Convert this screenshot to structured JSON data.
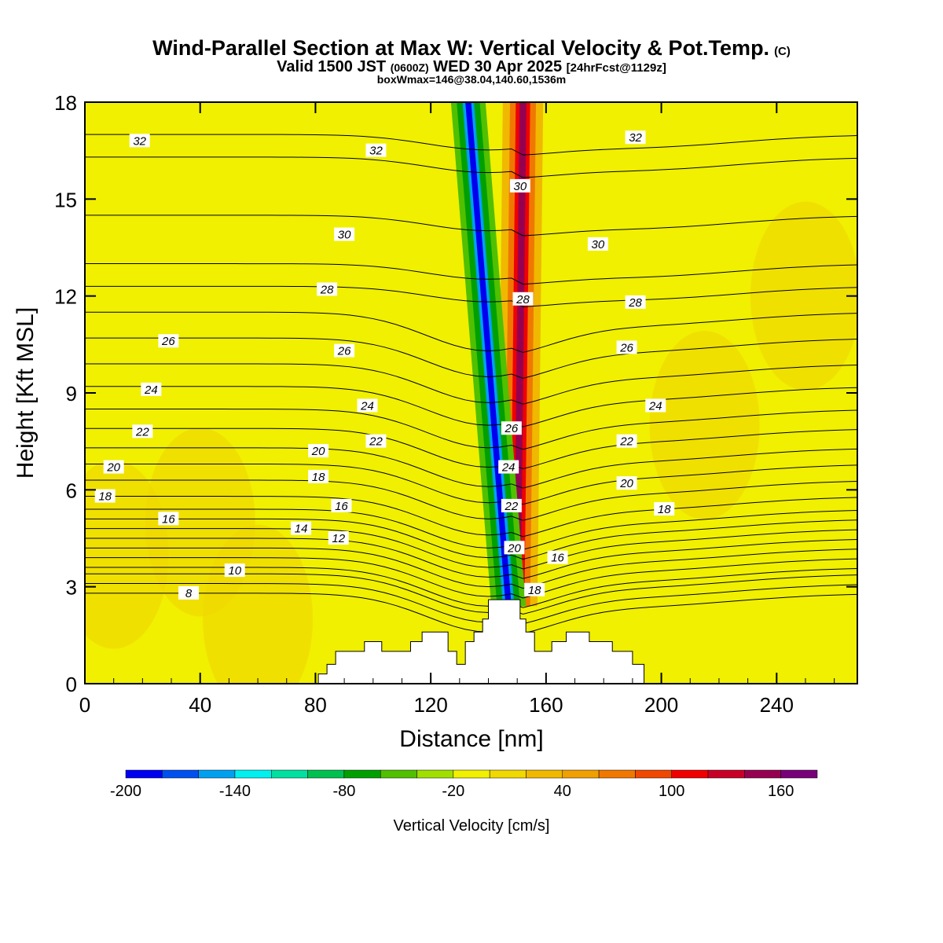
{
  "header": {
    "title": "Wind-Parallel Section at Max W: Vertical Velocity & Pot.Temp.",
    "copyright": "(C)",
    "valid_prefix": "Valid 1500 JST",
    "valid_utc": "(0600Z)",
    "valid_date": "WED 30 Apr 2025",
    "forecast": "[24hrFcst@1129z]",
    "boxinfo": "boxWmax=146@38.04,140.60,1536m"
  },
  "chart_data": {
    "type": "heatmap",
    "xlabel": "Distance [nm]",
    "ylabel": "Height [Kft MSL]",
    "xlim": [
      0,
      268
    ],
    "ylim": [
      0,
      18
    ],
    "xticks": [
      0,
      40,
      80,
      120,
      160,
      200,
      240
    ],
    "yticks": [
      0,
      3,
      6,
      9,
      12,
      15,
      18
    ],
    "colorbar": {
      "label": "Vertical Velocity [cm/s]",
      "range": [
        -200,
        180
      ],
      "tick_values": [
        -200,
        -140,
        -80,
        -20,
        40,
        100,
        160
      ],
      "tick_labels": [
        "-200",
        "-140",
        "-80",
        "-20",
        "40",
        "100",
        "160"
      ],
      "colors": [
        "#0000f0",
        "#0050f0",
        "#00a0f0",
        "#00f0f0",
        "#00e0a0",
        "#00c050",
        "#00a000",
        "#50c000",
        "#a0e000",
        "#f0f000",
        "#f0d800",
        "#f0b800",
        "#f0a000",
        "#f07800",
        "#f04800",
        "#f00000",
        "#c80028",
        "#960050",
        "#780078"
      ]
    },
    "background_color": "#f0f000",
    "updraft": {
      "base_x": 150,
      "top_x": 152,
      "max": 146,
      "colors": [
        "#f0b800",
        "#f07800",
        "#f00000",
        "#960050"
      ]
    },
    "downdraft": {
      "base_x": 147,
      "top_x": 133,
      "min": -200,
      "colors": [
        "#50c000",
        "#00a000",
        "#00a0f0",
        "#0000f0"
      ]
    },
    "terrain": [
      [
        81,
        0
      ],
      [
        81,
        0.3
      ],
      [
        84,
        0.3
      ],
      [
        84,
        0.6
      ],
      [
        87,
        0.6
      ],
      [
        87,
        1.0
      ],
      [
        97,
        1.0
      ],
      [
        97,
        1.3
      ],
      [
        103,
        1.3
      ],
      [
        103,
        1.0
      ],
      [
        113,
        1.0
      ],
      [
        113,
        1.3
      ],
      [
        117,
        1.3
      ],
      [
        117,
        1.6
      ],
      [
        126,
        1.6
      ],
      [
        126,
        1.0
      ],
      [
        129,
        1.0
      ],
      [
        129,
        0.6
      ],
      [
        132,
        0.6
      ],
      [
        132,
        1.3
      ],
      [
        135,
        1.3
      ],
      [
        135,
        1.6
      ],
      [
        138,
        1.6
      ],
      [
        138,
        2.0
      ],
      [
        140,
        2.0
      ],
      [
        140,
        2.6
      ],
      [
        151,
        2.6
      ],
      [
        151,
        2.0
      ],
      [
        153,
        2.0
      ],
      [
        153,
        1.6
      ],
      [
        156,
        1.6
      ],
      [
        156,
        1.0
      ],
      [
        162,
        1.0
      ],
      [
        162,
        1.3
      ],
      [
        167,
        1.3
      ],
      [
        167,
        1.6
      ],
      [
        175,
        1.6
      ],
      [
        175,
        1.3
      ],
      [
        183,
        1.3
      ],
      [
        183,
        1.0
      ],
      [
        190,
        1.0
      ],
      [
        190,
        0.6
      ],
      [
        194,
        0.6
      ],
      [
        194,
        0
      ]
    ],
    "isentrope_labels": [
      {
        "text": "32",
        "x": 19,
        "y": 16.8
      },
      {
        "text": "32",
        "x": 101,
        "y": 16.5
      },
      {
        "text": "32",
        "x": 191,
        "y": 16.9
      },
      {
        "text": "30",
        "x": 90,
        "y": 13.9
      },
      {
        "text": "30",
        "x": 151,
        "y": 15.4
      },
      {
        "text": "30",
        "x": 178,
        "y": 13.6
      },
      {
        "text": "28",
        "x": 84,
        "y": 12.2
      },
      {
        "text": "28",
        "x": 152,
        "y": 11.9
      },
      {
        "text": "28",
        "x": 191,
        "y": 11.8
      },
      {
        "text": "26",
        "x": 29,
        "y": 10.6
      },
      {
        "text": "26",
        "x": 90,
        "y": 10.3
      },
      {
        "text": "26",
        "x": 188,
        "y": 10.4
      },
      {
        "text": "24",
        "x": 23,
        "y": 9.1
      },
      {
        "text": "24",
        "x": 98,
        "y": 8.6
      },
      {
        "text": "24",
        "x": 198,
        "y": 8.6
      },
      {
        "text": "26",
        "x": 148,
        "y": 7.9
      },
      {
        "text": "24",
        "x": 147,
        "y": 6.7
      },
      {
        "text": "22",
        "x": 148,
        "y": 5.5
      },
      {
        "text": "20",
        "x": 149,
        "y": 4.2
      },
      {
        "text": "18",
        "x": 156,
        "y": 2.9
      },
      {
        "text": "22",
        "x": 20,
        "y": 7.8
      },
      {
        "text": "22",
        "x": 101,
        "y": 7.5
      },
      {
        "text": "22",
        "x": 188,
        "y": 7.5
      },
      {
        "text": "20",
        "x": 10,
        "y": 6.7
      },
      {
        "text": "20",
        "x": 81,
        "y": 7.2
      },
      {
        "text": "20",
        "x": 188,
        "y": 6.2
      },
      {
        "text": "18",
        "x": 7,
        "y": 5.8
      },
      {
        "text": "18",
        "x": 81,
        "y": 6.4
      },
      {
        "text": "18",
        "x": 201,
        "y": 5.4
      },
      {
        "text": "16",
        "x": 29,
        "y": 5.1
      },
      {
        "text": "16",
        "x": 89,
        "y": 5.5
      },
      {
        "text": "16",
        "x": 164,
        "y": 3.9
      },
      {
        "text": "14",
        "x": 75,
        "y": 4.8
      },
      {
        "text": "12",
        "x": 88,
        "y": 4.5
      },
      {
        "text": "10",
        "x": 52,
        "y": 3.5
      },
      {
        "text": "8",
        "x": 36,
        "y": 2.8
      }
    ],
    "isentrope_theta": [
      32,
      31,
      30,
      29,
      28,
      27,
      26,
      25,
      24,
      23,
      22,
      21,
      20,
      19,
      18,
      17,
      16,
      15,
      14,
      13,
      12,
      11,
      10,
      9,
      8
    ],
    "isentrope_heights": [
      17.0,
      16.3,
      14.5,
      13.0,
      12.3,
      11.5,
      10.7,
      9.9,
      9.2,
      8.5,
      7.9,
      7.3,
      6.8,
      6.3,
      5.8,
      5.4,
      5.1,
      4.8,
      4.5,
      4.2,
      3.9,
      3.6,
      3.4,
      3.1,
      2.8
    ]
  }
}
